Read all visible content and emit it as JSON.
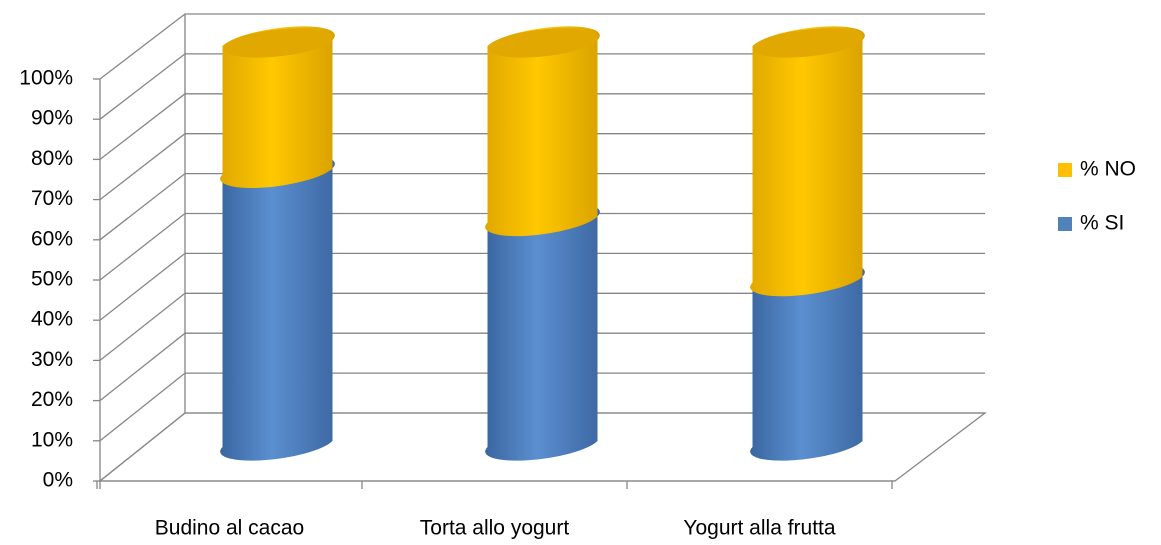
{
  "chart_data": {
    "type": "bar3d",
    "stacked": true,
    "categories": [
      "Budino al cacao",
      "Torta allo yogurt",
      "Yogurt alla frutta"
    ],
    "series": [
      {
        "name": "% SI",
        "color": "#4f81bd",
        "values": [
          68,
          56,
          41
        ]
      },
      {
        "name": "% NO",
        "color": "#ffc000",
        "values": [
          32,
          44,
          59
        ]
      }
    ],
    "ylim": [
      0,
      100
    ],
    "yticks": [
      {
        "value": 0,
        "label": "0%"
      },
      {
        "value": 10,
        "label": "10%"
      },
      {
        "value": 20,
        "label": "20%"
      },
      {
        "value": 30,
        "label": "30%"
      },
      {
        "value": 40,
        "label": "40%"
      },
      {
        "value": 50,
        "label": "50%"
      },
      {
        "value": 60,
        "label": "60%"
      },
      {
        "value": 70,
        "label": "70%"
      },
      {
        "value": 80,
        "label": "80%"
      },
      {
        "value": 90,
        "label": "90%"
      },
      {
        "value": 100,
        "label": "100%"
      }
    ],
    "grid": true,
    "legend": "right"
  }
}
